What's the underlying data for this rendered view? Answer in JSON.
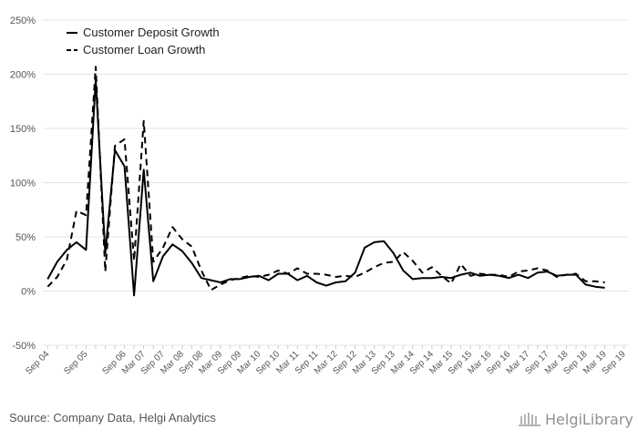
{
  "chart_data": {
    "type": "line",
    "ylim": [
      -50,
      250
    ],
    "y_ticks": [
      "-50%",
      "0%",
      "50%",
      "100%",
      "150%",
      "200%",
      "250%"
    ],
    "y_tick_values": [
      -50,
      0,
      50,
      100,
      150,
      200,
      250
    ],
    "x_ticks": [
      "Sep 04",
      "Sep 05",
      "Sep 06",
      "Mar 07",
      "Sep 07",
      "Mar 08",
      "Sep 08",
      "Mar 09",
      "Sep 09",
      "Mar 10",
      "Sep 10",
      "Mar 11",
      "Sep 11",
      "Mar 12",
      "Sep 12",
      "Mar 13",
      "Sep 13",
      "Mar 14",
      "Sep 14",
      "Mar 15",
      "Sep 15",
      "Mar 16",
      "Sep 16",
      "Mar 17",
      "Sep 17",
      "Mar 18",
      "Sep 18",
      "Mar 19",
      "Sep 19"
    ],
    "x_tick_quarters": [
      0,
      4,
      8,
      10,
      12,
      14,
      16,
      18,
      20,
      22,
      24,
      26,
      28,
      30,
      32,
      34,
      36,
      38,
      40,
      42,
      44,
      46,
      48,
      50,
      52,
      54,
      56,
      58,
      60
    ],
    "grid": true,
    "legend_position": "top-left",
    "series": [
      {
        "name": "Customer Deposit Growth",
        "style": "solid",
        "color": "#000000",
        "points": [
          [
            0,
            11
          ],
          [
            1,
            27
          ],
          [
            2,
            38
          ],
          [
            3,
            45
          ],
          [
            4,
            38
          ],
          [
            5,
            195
          ],
          [
            6,
            35
          ],
          [
            7,
            130
          ],
          [
            8,
            115
          ],
          [
            9,
            -4
          ],
          [
            10,
            112
          ],
          [
            11,
            9
          ],
          [
            12,
            32
          ],
          [
            13,
            43
          ],
          [
            14,
            37
          ],
          [
            15,
            26
          ],
          [
            16,
            12
          ],
          [
            17,
            10
          ],
          [
            18,
            8
          ],
          [
            19,
            11
          ],
          [
            20,
            11
          ],
          [
            21,
            13
          ],
          [
            22,
            14
          ],
          [
            23,
            10
          ],
          [
            24,
            16
          ],
          [
            25,
            16
          ],
          [
            26,
            10
          ],
          [
            27,
            14
          ],
          [
            28,
            8
          ],
          [
            29,
            5
          ],
          [
            30,
            8
          ],
          [
            31,
            9
          ],
          [
            32,
            17
          ],
          [
            33,
            40
          ],
          [
            34,
            45
          ],
          [
            35,
            46
          ],
          [
            36,
            35
          ],
          [
            37,
            19
          ],
          [
            38,
            11
          ],
          [
            39,
            12
          ],
          [
            40,
            12
          ],
          [
            41,
            13
          ],
          [
            42,
            12
          ],
          [
            43,
            15
          ],
          [
            44,
            17
          ],
          [
            45,
            14
          ],
          [
            46,
            15
          ],
          [
            47,
            14
          ],
          [
            48,
            12
          ],
          [
            49,
            15
          ],
          [
            50,
            12
          ],
          [
            51,
            17
          ],
          [
            52,
            18
          ],
          [
            53,
            14
          ],
          [
            54,
            15
          ],
          [
            55,
            15
          ],
          [
            56,
            6
          ],
          [
            57,
            4
          ],
          [
            58,
            3
          ]
        ]
      },
      {
        "name": "Customer Loan Growth",
        "style": "dashed",
        "color": "#000000",
        "points": [
          [
            0,
            4
          ],
          [
            1,
            13
          ],
          [
            2,
            29
          ],
          [
            3,
            74
          ],
          [
            4,
            70
          ],
          [
            5,
            207
          ],
          [
            6,
            18
          ],
          [
            7,
            134
          ],
          [
            8,
            140
          ],
          [
            9,
            28
          ],
          [
            10,
            157
          ],
          [
            11,
            27
          ],
          [
            12,
            40
          ],
          [
            13,
            59
          ],
          [
            14,
            48
          ],
          [
            15,
            41
          ],
          [
            16,
            19
          ],
          [
            17,
            1
          ],
          [
            18,
            6
          ],
          [
            19,
            10
          ],
          [
            20,
            12
          ],
          [
            21,
            14
          ],
          [
            22,
            13
          ],
          [
            23,
            15
          ],
          [
            24,
            19
          ],
          [
            25,
            16
          ],
          [
            26,
            21
          ],
          [
            27,
            16
          ],
          [
            28,
            16
          ],
          [
            29,
            15
          ],
          [
            30,
            13
          ],
          [
            31,
            14
          ],
          [
            32,
            13
          ],
          [
            33,
            17
          ],
          [
            34,
            22
          ],
          [
            35,
            26
          ],
          [
            36,
            27
          ],
          [
            37,
            36
          ],
          [
            38,
            28
          ],
          [
            39,
            17
          ],
          [
            40,
            22
          ],
          [
            41,
            14
          ],
          [
            42,
            7
          ],
          [
            43,
            25
          ],
          [
            44,
            14
          ],
          [
            45,
            16
          ],
          [
            46,
            15
          ],
          [
            47,
            15
          ],
          [
            48,
            13
          ],
          [
            49,
            18
          ],
          [
            50,
            19
          ],
          [
            51,
            21
          ],
          [
            52,
            19
          ],
          [
            53,
            13
          ],
          [
            54,
            15
          ],
          [
            55,
            16
          ],
          [
            56,
            9
          ],
          [
            57,
            9
          ],
          [
            58,
            8
          ]
        ]
      }
    ]
  },
  "footer": {
    "source": "Source: Company Data, Helgi Analytics",
    "logo_text": "HelgiLibrary"
  }
}
